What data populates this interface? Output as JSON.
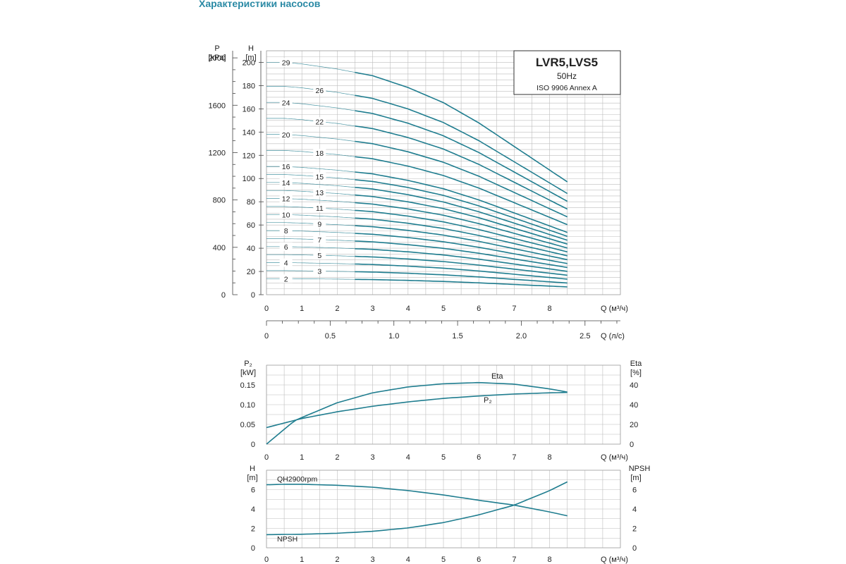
{
  "page_title": "Характеристики насосов",
  "colors": {
    "curve": "#1f7d8f",
    "grid": "#bdbdbd",
    "title": "#2b8aa5"
  },
  "chart_data": [
    {
      "type": "line",
      "title": "LVR5,LVS5",
      "subtitle": [
        "50Hz",
        "ISO 9906 Annex A"
      ],
      "xlabel": "Q (м³/ч)",
      "x2label": "Q (л/с)",
      "ylabel_left": [
        "P",
        "[kPa]"
      ],
      "ylabel": [
        "H",
        "[m]"
      ],
      "xlim": [
        0,
        10
      ],
      "ylim": [
        0,
        210
      ],
      "xticks": [
        "0",
        "1",
        "2",
        "3",
        "4",
        "5",
        "6",
        "7",
        "8"
      ],
      "x2ticks": [
        "0",
        "0.5",
        "1.0",
        "1.5",
        "2.0",
        "2.5"
      ],
      "x2tick_values": [
        0,
        0.5,
        1.0,
        1.5,
        2.0,
        2.5
      ],
      "yticks": [
        "0",
        "20",
        "40",
        "60",
        "80",
        "100",
        "120",
        "140",
        "160",
        "180",
        "200"
      ],
      "ytick_values": [
        0,
        20,
        40,
        60,
        80,
        100,
        120,
        140,
        160,
        180,
        200
      ],
      "yticks_left": [
        "0",
        "400",
        "800",
        "1200",
        "1600",
        "2000"
      ],
      "ytick_left_values": [
        0,
        400,
        800,
        1200,
        1600,
        2000
      ],
      "grid": true,
      "stages": [
        2,
        3,
        4,
        5,
        6,
        7,
        8,
        9,
        10,
        11,
        12,
        13,
        14,
        15,
        16,
        18,
        20,
        22,
        24,
        26,
        29
      ],
      "stage_labels": [
        "2",
        "3",
        "4",
        "5",
        "6",
        "7",
        "8",
        "9",
        "10",
        "11",
        "12",
        "13",
        "14",
        "15",
        "16",
        "18",
        "20",
        "22",
        "24",
        "26",
        "29"
      ],
      "head_per_stage": {
        "x": [
          0,
          0.5,
          1,
          2,
          3,
          4,
          5,
          6,
          7,
          8,
          8.5
        ],
        "y": [
          6.9,
          6.9,
          6.85,
          6.7,
          6.5,
          6.15,
          5.7,
          5.1,
          4.4,
          3.7,
          3.35
        ]
      }
    },
    {
      "type": "line",
      "xlabel": "Q (м³/ч)",
      "ylabel_left": [
        "P₂",
        "[kW]"
      ],
      "ylabel_right": [
        "Eta",
        "[%]"
      ],
      "xlim": [
        0,
        10
      ],
      "ylim": [
        0,
        0.2
      ],
      "xticks": [
        "0",
        "1",
        "2",
        "3",
        "4",
        "5",
        "6",
        "7",
        "8"
      ],
      "yticks_left": [
        "0",
        "0.05",
        "0.10",
        "0.15"
      ],
      "ytick_left_values": [
        0,
        0.05,
        0.1,
        0.15
      ],
      "yticks_right": [
        "0",
        "20",
        "40",
        "40"
      ],
      "grid": true,
      "series": [
        {
          "name": "Eta",
          "x": [
            0,
            0.8,
            2,
            3,
            4,
            5,
            6,
            7,
            8,
            8.5
          ],
          "y": [
            0.0,
            0.06,
            0.105,
            0.13,
            0.145,
            0.153,
            0.156,
            0.152,
            0.14,
            0.132
          ]
        },
        {
          "name": "P₂",
          "x": [
            0,
            1,
            2,
            3,
            4,
            5,
            6,
            7,
            8,
            8.5
          ],
          "y": [
            0.042,
            0.065,
            0.082,
            0.096,
            0.107,
            0.116,
            0.122,
            0.127,
            0.13,
            0.131
          ]
        }
      ]
    },
    {
      "type": "line",
      "xlabel": "Q (м³/ч)",
      "ylabel_left": [
        "H",
        "[m]"
      ],
      "ylabel_right": [
        "NPSH",
        "[m]"
      ],
      "xlim": [
        0,
        10
      ],
      "ylim": [
        0,
        8
      ],
      "xticks": [
        "0",
        "1",
        "2",
        "3",
        "4",
        "5",
        "6",
        "7",
        "8"
      ],
      "yticks_left": [
        "0",
        "2",
        "4",
        "6"
      ],
      "ytick_left_values": [
        0,
        2,
        4,
        6
      ],
      "yticks_right": [
        "0",
        "2",
        "4",
        "6"
      ],
      "grid": true,
      "series": [
        {
          "name": "QH2900rpm",
          "x": [
            0,
            0.5,
            1,
            2,
            3,
            4,
            5,
            6,
            7,
            8,
            8.5
          ],
          "y": [
            6.5,
            6.55,
            6.55,
            6.45,
            6.25,
            5.9,
            5.45,
            4.9,
            4.4,
            3.7,
            3.3
          ]
        },
        {
          "name": "NPSH",
          "x": [
            0,
            1,
            2,
            3,
            4,
            5,
            6,
            7,
            8,
            8.5
          ],
          "y": [
            1.35,
            1.4,
            1.5,
            1.7,
            2.05,
            2.6,
            3.4,
            4.4,
            5.9,
            6.8
          ]
        }
      ]
    }
  ]
}
